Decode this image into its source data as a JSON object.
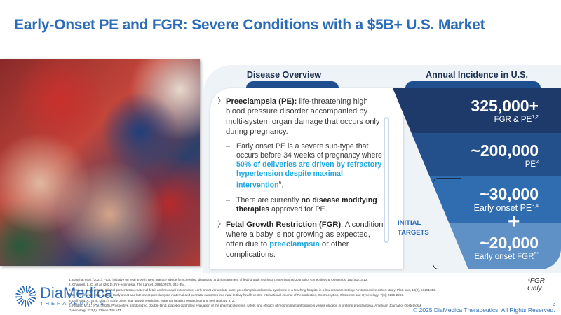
{
  "title": "Early-Onset PE and FGR:  Severe Conditions with a $5B+ U.S. Market",
  "headers": {
    "overview": "Disease Overview",
    "incidence": "Annual Incidence in U.S."
  },
  "overview": {
    "pe_term": "Preeclampsia (PE):",
    "pe_text": " life-threatening high blood pressure disorder accompanied by multi-system organ damage that occurs only during pregnancy.",
    "sub1_a": "Early onset PE is a severe sub-type that occurs before 34 weeks of pregnancy where ",
    "sub1_hl": "50% of deliveries are driven by refractory hypertension despite maximal intervention",
    "sub1_sup": "6",
    "sub1_end": ".",
    "sub2_a": "There are currently ",
    "sub2_b": "no disease modifying therapies",
    "sub2_c": " approved for PE.",
    "fgr_term": "Fetal Growth Restriction (FGR)",
    "fgr_a": ": A condition where a baby is not growing as expected, often due to ",
    "fgr_hl": "preeclampsia",
    "fgr_b": " or other complications."
  },
  "incidence": [
    {
      "value": "325,000+",
      "label": "FGR & PE",
      "sup": "1,2",
      "color": "#1d3a6b"
    },
    {
      "value": "~200,000",
      "label": "PE",
      "sup": "2",
      "color": "#23508a"
    },
    {
      "value": "~30,000",
      "label": "Early onset PE",
      "sup": "3,4",
      "color": "#2f6db0"
    },
    {
      "value": "~20,000",
      "label": "Early onset FGR",
      "sup": "5*",
      "color": "#5f90c6"
    }
  ],
  "initial_targets": [
    "INITIAL",
    "TARGETS"
  ],
  "plus": "+",
  "fgr_only": "*FGR Only",
  "logo": {
    "name": "DiaMedica",
    "sub": "THERAPEUTICS"
  },
  "references": [
    "1.   Baschat et al. (2021). FIGO initiative on fetal growth: Best practice advice for screening, diagnosis, and management of fetal growth restriction. International Journal of Gynecology & Obstetrics, 152(S1), 3-12.",
    "2.   Chappell, L. C., et al. (2021). Pre-eclampsia. The Lancet, 398(10297), 341-354.",
    "3.   Teka, H., et al. (2023). Clinical presentation, maternal-fetal, and neonatal outcomes of early-onset versus late onset preeclampsia-eclampsia syndrome in a teaching hospital in a low-resource setting: A retrospective cohort study. PloS one, 18(2), e0281952.",
    "4.   E., G., Akurati, et al. (2018). Early onset and late onset preeclampsia-maternal and perinatal outcomes in a rural tertiary health center. International Journal of Reproduction, Contraception, Obstetrics and Gynecology, 7(6), 2266-2269.",
    "5.   Dall'Asta, A., et al. (2017). Early onset fetal growth restriction. Maternal health, neonatology and perinatology, 3, 2.",
    "6.   Paidas, M. J., et al. (2020). Prospective, randomized, double-blind, placebo-controlled evaluation of the pharmacokinetics, safety, and efficacy of recombinant antithrombin versus placebo in preterm preeclampsia. American Journal of Obstetrics &",
    "      Gynecology, 223(5), 739.e1-739.e13."
  ],
  "copyright": "© 2025 DiaMedica Therapeutics. All Rights Reserved.",
  "page_number": "3"
}
